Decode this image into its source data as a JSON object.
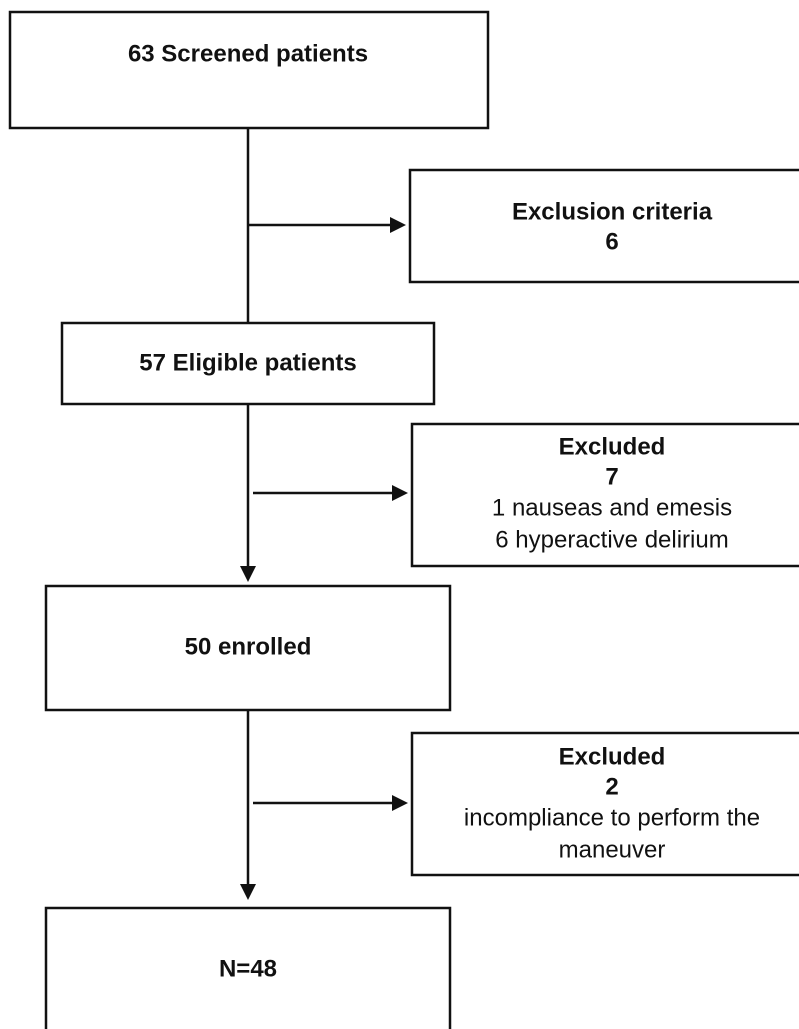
{
  "nodes": [
    {
      "label": "63 Screened patients"
    },
    {
      "title": "Exclusion criteria",
      "count": "6"
    },
    {
      "label": "57 Eligible patients"
    },
    {
      "title": "Excluded",
      "count": "7",
      "details": [
        "1 nauseas and emesis",
        "6 hyperactive delirium"
      ]
    },
    {
      "label": "50 enrolled"
    },
    {
      "title": "Excluded",
      "count": "2",
      "details": [
        "incompliance to perform the",
        "maneuver"
      ]
    },
    {
      "label": "N=48"
    }
  ]
}
